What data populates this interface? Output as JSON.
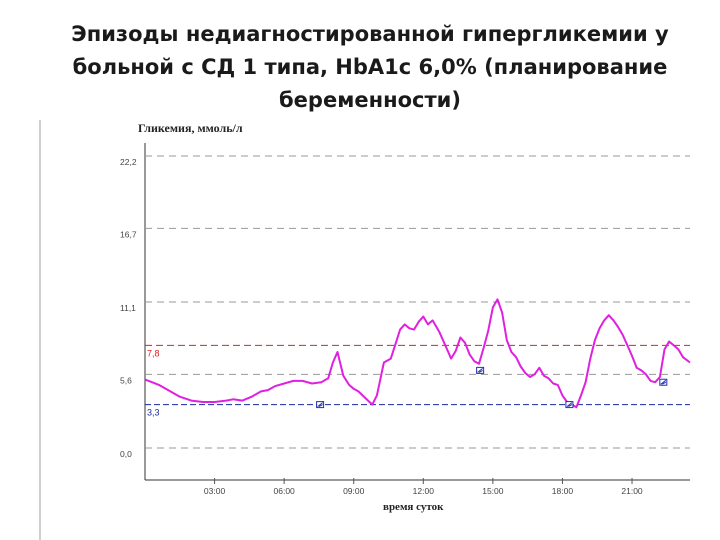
{
  "slide": {
    "title": "Эпизоды недиагностированной гипергликемии у больной с СД 1 типа, HbA1c 6,0% (планирование беременности)"
  },
  "chart_data": {
    "type": "line",
    "ylabel": "Гликемия, ммоль/л",
    "xlabel": "время суток",
    "ytick_labels": [
      "22,2",
      "16,7",
      "11,1",
      "5,6",
      "0,0"
    ],
    "yticks": [
      22.2,
      16.7,
      11.1,
      5.6,
      0.0
    ],
    "xtick_labels": [
      "03:00",
      "06:00",
      "09:00",
      "12:00",
      "15:00",
      "18:00",
      "21:00"
    ],
    "xticks": [
      3,
      6,
      9,
      12,
      15,
      18,
      21
    ],
    "xlim": [
      0,
      23.5
    ],
    "ylim": [
      0,
      22.2
    ],
    "grid": true,
    "thresholds": [
      {
        "label": "7,8",
        "value": 7.8,
        "color": "#e02020"
      },
      {
        "label": "3,3",
        "value": 3.3,
        "color": "#1a2aa0"
      }
    ],
    "series": [
      {
        "color": "#e020e0",
        "x": [
          0,
          0.3,
          0.6,
          1.0,
          1.5,
          2.0,
          2.5,
          3.0,
          3.5,
          3.8,
          4.2,
          4.6,
          5.0,
          5.3,
          5.6,
          6.0,
          6.4,
          6.8,
          7.2,
          7.6,
          7.9,
          8.1,
          8.3,
          8.55,
          8.8,
          9.0,
          9.2,
          9.5,
          9.8,
          10.0,
          10.3,
          10.6,
          10.8,
          11.0,
          11.2,
          11.4,
          11.6,
          11.8,
          12.0,
          12.2,
          12.4,
          12.7,
          13.0,
          13.2,
          13.4,
          13.6,
          13.8,
          14.0,
          14.2,
          14.4,
          14.6,
          14.8,
          15.0,
          15.2,
          15.4,
          15.6,
          15.8,
          16.0,
          16.2,
          16.4,
          16.6,
          16.8,
          17.0,
          17.2,
          17.4,
          17.6,
          17.8,
          18.0,
          18.2,
          18.4,
          18.6,
          18.8,
          19.0,
          19.2,
          19.4,
          19.6,
          19.8,
          20.0,
          20.2,
          20.4,
          20.6,
          20.8,
          21.0,
          21.2,
          21.4,
          21.6,
          21.8,
          22.0,
          22.2,
          22.4,
          22.6,
          22.8,
          23.0,
          23.2,
          23.5
        ],
        "y": [
          5.2,
          5.0,
          4.8,
          4.4,
          3.9,
          3.6,
          3.5,
          3.5,
          3.6,
          3.7,
          3.6,
          3.9,
          4.3,
          4.4,
          4.7,
          4.9,
          5.1,
          5.1,
          4.9,
          5.0,
          5.3,
          6.5,
          7.3,
          5.5,
          4.8,
          4.5,
          4.3,
          3.8,
          3.3,
          4.0,
          6.5,
          6.8,
          7.9,
          9.0,
          9.4,
          9.1,
          9.0,
          9.6,
          10.0,
          9.4,
          9.7,
          8.8,
          7.6,
          6.8,
          7.4,
          8.4,
          8.0,
          7.1,
          6.6,
          6.4,
          7.6,
          8.9,
          10.7,
          11.3,
          10.3,
          8.2,
          7.3,
          6.9,
          6.2,
          5.7,
          5.4,
          5.6,
          6.1,
          5.5,
          5.3,
          4.9,
          4.8,
          4.0,
          3.5,
          3.3,
          3.1,
          4.0,
          5.0,
          6.8,
          8.2,
          9.1,
          9.7,
          10.1,
          9.7,
          9.2,
          8.6,
          7.8,
          7.0,
          6.1,
          5.9,
          5.6,
          5.1,
          5.0,
          5.4,
          7.5,
          8.1,
          7.8,
          7.5,
          6.9,
          6.5
        ]
      }
    ],
    "markers": [
      {
        "x": 7.55,
        "y": 3.3
      },
      {
        "x": 14.45,
        "y": 5.9
      },
      {
        "x": 18.3,
        "y": 3.3
      },
      {
        "x": 22.35,
        "y": 5.0
      }
    ]
  }
}
